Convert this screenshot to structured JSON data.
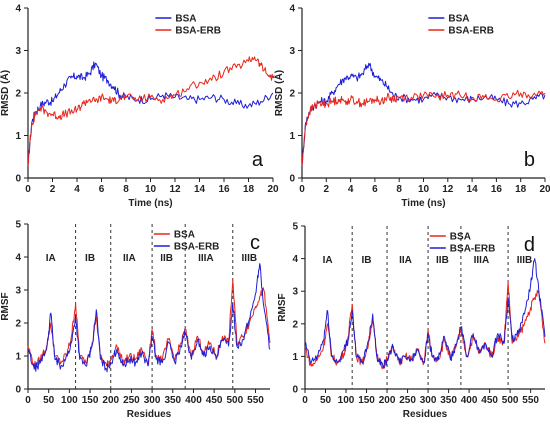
{
  "chart_data": [
    {
      "panel_label": "a",
      "type": "line",
      "xlabel": "Time (ns)",
      "ylabel": "RMSD (Å)",
      "xlim": [
        0,
        20
      ],
      "ylim": [
        0,
        4
      ],
      "xticks": [
        0,
        2,
        4,
        6,
        8,
        10,
        12,
        14,
        16,
        18,
        20
      ],
      "yticks": [
        0,
        1,
        2,
        3,
        4
      ],
      "legend_position": "top-center",
      "series": [
        {
          "name": "BSA",
          "color": "#1f1fd6",
          "x": [
            0,
            0.3,
            0.6,
            1,
            1.5,
            2,
            2.5,
            3,
            3.5,
            4,
            4.5,
            5,
            5.5,
            6,
            6.5,
            7,
            7.5,
            8,
            9,
            10,
            11,
            12,
            13,
            14,
            15,
            16,
            17,
            18,
            19,
            20
          ],
          "y": [
            0.3,
            1.3,
            1.55,
            1.7,
            1.8,
            1.8,
            2.0,
            2.2,
            2.35,
            2.4,
            2.35,
            2.45,
            2.7,
            2.4,
            2.3,
            2.15,
            1.95,
            1.9,
            1.85,
            1.85,
            1.95,
            1.9,
            1.85,
            1.85,
            1.9,
            1.85,
            1.75,
            1.7,
            1.8,
            2.0
          ]
        },
        {
          "name": "BSA-ERB",
          "color": "#e8261a",
          "x": [
            0,
            0.3,
            0.6,
            1,
            1.5,
            2,
            2.5,
            3,
            3.5,
            4,
            4.5,
            5,
            5.5,
            6,
            6.5,
            7,
            7.5,
            8,
            9,
            10,
            11,
            12,
            13,
            14,
            15,
            16,
            17,
            18,
            18.5,
            19,
            19.5,
            20
          ],
          "y": [
            0.3,
            1.25,
            1.5,
            1.65,
            1.55,
            1.5,
            1.45,
            1.5,
            1.55,
            1.6,
            1.75,
            1.85,
            1.8,
            1.9,
            1.85,
            1.8,
            1.9,
            1.9,
            1.85,
            1.9,
            1.85,
            1.95,
            2.1,
            2.25,
            2.3,
            2.5,
            2.6,
            2.75,
            2.85,
            2.65,
            2.45,
            2.35
          ]
        }
      ]
    },
    {
      "panel_label": "b",
      "type": "line",
      "xlabel": "Time (ns)",
      "ylabel": "RMSD (Å)",
      "xlim": [
        0,
        20
      ],
      "ylim": [
        0,
        4
      ],
      "xticks": [
        0,
        2,
        4,
        6,
        8,
        10,
        12,
        14,
        16,
        18,
        20
      ],
      "yticks": [
        0,
        1,
        2,
        3,
        4
      ],
      "legend_position": "top-center",
      "series": [
        {
          "name": "BSA",
          "color": "#1f1fd6",
          "x": [
            0,
            0.3,
            0.6,
            1,
            1.5,
            2,
            2.5,
            3,
            3.5,
            4,
            4.5,
            5,
            5.5,
            6,
            6.5,
            7,
            7.5,
            8,
            9,
            10,
            11,
            12,
            13,
            14,
            15,
            16,
            17,
            18,
            19,
            20
          ],
          "y": [
            0.3,
            1.3,
            1.55,
            1.7,
            1.8,
            1.8,
            2.0,
            2.2,
            2.35,
            2.4,
            2.35,
            2.45,
            2.7,
            2.4,
            2.3,
            2.15,
            1.95,
            1.9,
            1.85,
            1.85,
            1.95,
            1.9,
            1.85,
            1.85,
            1.9,
            1.85,
            1.75,
            1.75,
            1.85,
            1.95
          ]
        },
        {
          "name": "BSA-ERB",
          "color": "#e8261a",
          "x": [
            0,
            0.3,
            0.6,
            1,
            1.5,
            2,
            2.5,
            3,
            3.5,
            4,
            4.5,
            5,
            5.5,
            6,
            6.5,
            7,
            7.5,
            8,
            9,
            10,
            11,
            12,
            13,
            14,
            15,
            16,
            17,
            18,
            19,
            20
          ],
          "y": [
            0.3,
            1.25,
            1.55,
            1.7,
            1.75,
            1.75,
            1.8,
            1.85,
            1.8,
            1.85,
            1.8,
            1.75,
            1.8,
            1.85,
            1.8,
            1.9,
            1.85,
            1.9,
            1.9,
            1.95,
            1.9,
            1.95,
            1.95,
            1.9,
            1.9,
            1.85,
            1.9,
            2.0,
            1.95,
            2.0
          ]
        }
      ]
    },
    {
      "panel_label": "c",
      "type": "line",
      "xlabel": "Residues",
      "ylabel": "RMSF",
      "xlim": [
        0,
        585
      ],
      "ylim": [
        0,
        5
      ],
      "xticks": [
        0,
        50,
        100,
        150,
        200,
        250,
        300,
        350,
        400,
        450,
        500,
        550
      ],
      "yticks": [
        0,
        1,
        2,
        3,
        4,
        5
      ],
      "legend_position": "top-center",
      "domain_boundaries": [
        115,
        200,
        300,
        380,
        495
      ],
      "domain_labels": [
        {
          "text": "IA",
          "x": 55
        },
        {
          "text": "IB",
          "x": 150
        },
        {
          "text": "IIA",
          "x": 245
        },
        {
          "text": "IIB",
          "x": 335
        },
        {
          "text": "IIIA",
          "x": 430
        },
        {
          "text": "IIIB",
          "x": 535
        }
      ],
      "series": [
        {
          "name": "BSA",
          "color": "#e8261a",
          "x": [
            0,
            15,
            30,
            45,
            55,
            65,
            80,
            95,
            105,
            115,
            125,
            140,
            155,
            165,
            175,
            190,
            200,
            215,
            230,
            245,
            260,
            275,
            290,
            300,
            310,
            325,
            340,
            355,
            370,
            380,
            395,
            410,
            425,
            440,
            455,
            470,
            485,
            495,
            505,
            520,
            535,
            550,
            560,
            570,
            585
          ],
          "y": [
            1.3,
            0.7,
            0.9,
            1.3,
            2.0,
            1.0,
            0.8,
            1.1,
            1.6,
            2.6,
            1.0,
            0.8,
            1.4,
            2.2,
            1.0,
            0.7,
            0.9,
            1.3,
            0.8,
            1.0,
            0.9,
            1.2,
            0.8,
            1.8,
            1.0,
            0.9,
            1.5,
            0.9,
            1.4,
            1.8,
            1.0,
            1.6,
            1.1,
            1.4,
            1.0,
            1.6,
            1.4,
            3.3,
            1.4,
            1.6,
            2.0,
            2.5,
            2.8,
            3.0,
            1.4
          ]
        },
        {
          "name": "BSA-ERB",
          "color": "#1f1fd6",
          "x": [
            0,
            15,
            30,
            45,
            55,
            65,
            80,
            95,
            105,
            115,
            125,
            140,
            155,
            165,
            175,
            190,
            200,
            215,
            230,
            245,
            260,
            275,
            290,
            300,
            310,
            325,
            340,
            355,
            370,
            380,
            395,
            410,
            425,
            440,
            455,
            470,
            485,
            495,
            505,
            520,
            535,
            550,
            560,
            570,
            585
          ],
          "y": [
            1.2,
            0.6,
            0.8,
            1.2,
            2.3,
            0.9,
            0.7,
            1.0,
            1.4,
            2.2,
            0.9,
            0.7,
            1.3,
            2.4,
            0.9,
            0.6,
            0.8,
            1.2,
            0.7,
            0.9,
            0.8,
            1.1,
            0.7,
            1.6,
            0.9,
            0.8,
            1.4,
            0.8,
            1.3,
            1.7,
            0.9,
            1.5,
            1.0,
            1.3,
            0.9,
            1.5,
            1.3,
            2.6,
            1.3,
            1.5,
            2.1,
            2.9,
            3.8,
            2.5,
            1.2
          ]
        }
      ]
    },
    {
      "panel_label": "d",
      "type": "line",
      "xlabel": "Residues",
      "ylabel": "RMSF",
      "xlim": [
        0,
        585
      ],
      "ylim": [
        0,
        5
      ],
      "xticks": [
        0,
        50,
        100,
        150,
        200,
        250,
        300,
        350,
        400,
        450,
        500,
        550
      ],
      "yticks": [
        0,
        1,
        2,
        3,
        4,
        5
      ],
      "legend_position": "top-center",
      "domain_boundaries": [
        115,
        200,
        300,
        380,
        495
      ],
      "domain_labels": [
        {
          "text": "IA",
          "x": 55
        },
        {
          "text": "IB",
          "x": 150
        },
        {
          "text": "IIA",
          "x": 245
        },
        {
          "text": "IIB",
          "x": 335
        },
        {
          "text": "IIIA",
          "x": 430
        },
        {
          "text": "IIIB",
          "x": 535
        }
      ],
      "series": [
        {
          "name": "BSA",
          "color": "#e8261a",
          "x": [
            0,
            15,
            30,
            45,
            55,
            65,
            80,
            95,
            105,
            115,
            125,
            140,
            155,
            165,
            175,
            190,
            200,
            215,
            230,
            245,
            260,
            275,
            290,
            300,
            310,
            325,
            340,
            355,
            370,
            380,
            395,
            410,
            425,
            440,
            455,
            470,
            485,
            495,
            505,
            520,
            535,
            550,
            560,
            570,
            585
          ],
          "y": [
            1.3,
            0.7,
            0.9,
            1.3,
            2.0,
            1.0,
            0.8,
            1.1,
            1.6,
            2.6,
            1.0,
            0.8,
            1.4,
            2.2,
            1.0,
            0.7,
            0.9,
            1.3,
            0.8,
            1.0,
            0.9,
            1.2,
            0.8,
            1.8,
            1.0,
            0.9,
            1.5,
            0.9,
            1.4,
            1.8,
            1.0,
            1.6,
            1.1,
            1.4,
            1.0,
            1.6,
            1.4,
            3.3,
            1.4,
            1.6,
            2.0,
            2.5,
            2.8,
            3.0,
            1.4
          ]
        },
        {
          "name": "BSA-ERB",
          "color": "#1f1fd6",
          "x": [
            0,
            15,
            30,
            45,
            55,
            65,
            80,
            95,
            105,
            115,
            125,
            140,
            155,
            165,
            175,
            190,
            200,
            215,
            230,
            245,
            260,
            275,
            290,
            300,
            310,
            325,
            340,
            355,
            370,
            380,
            395,
            410,
            425,
            440,
            455,
            470,
            485,
            495,
            505,
            520,
            535,
            550,
            560,
            570,
            585
          ],
          "y": [
            1.4,
            0.8,
            1.0,
            1.5,
            2.4,
            1.0,
            0.8,
            1.2,
            1.5,
            2.4,
            1.0,
            0.8,
            1.5,
            2.3,
            1.0,
            0.7,
            0.9,
            1.3,
            0.8,
            1.0,
            0.9,
            1.2,
            0.8,
            1.7,
            1.0,
            0.9,
            1.6,
            0.9,
            1.4,
            1.9,
            1.0,
            1.7,
            1.1,
            1.4,
            1.0,
            1.7,
            1.4,
            2.8,
            1.5,
            1.7,
            2.3,
            3.2,
            4.0,
            3.0,
            1.6
          ]
        }
      ]
    }
  ]
}
